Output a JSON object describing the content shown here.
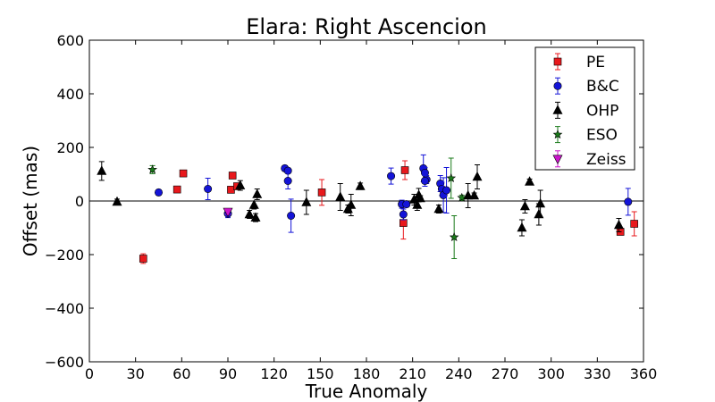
{
  "chart_data": {
    "type": "scatter",
    "title": "Elara: Right Ascencion",
    "xlabel": "True Anomaly",
    "ylabel": "Offset (mas)",
    "xlim": [
      0,
      360
    ],
    "ylim": [
      -600,
      600
    ],
    "xticks": [
      0,
      30,
      60,
      90,
      120,
      150,
      180,
      210,
      240,
      270,
      300,
      330,
      360
    ],
    "yticks": [
      -600,
      -400,
      -200,
      0,
      200,
      400,
      600
    ],
    "xtick_labels": [
      "0",
      "30",
      "60",
      "90",
      "120",
      "150",
      "180",
      "210",
      "240",
      "270",
      "300",
      "330",
      "360"
    ],
    "ytick_labels": [
      "−600",
      "−400",
      "−200",
      "0",
      "200",
      "400",
      "600"
    ],
    "zero_line": true,
    "grid": false,
    "legend_position": "top-right",
    "series": [
      {
        "name": "PE",
        "marker": "square",
        "color": "#e8181c",
        "points": [
          {
            "x": 35,
            "y": -215,
            "err": 18
          },
          {
            "x": 57,
            "y": 43,
            "err": 8
          },
          {
            "x": 61,
            "y": 103,
            "err": 8
          },
          {
            "x": 92,
            "y": 42,
            "err": 12
          },
          {
            "x": 93,
            "y": 95,
            "err": 8
          },
          {
            "x": 96,
            "y": 55,
            "err": 8
          },
          {
            "x": 151,
            "y": 32,
            "err": 48
          },
          {
            "x": 204,
            "y": -82,
            "err": 60
          },
          {
            "x": 205,
            "y": 115,
            "err": 35
          },
          {
            "x": 345,
            "y": -115,
            "err": 12
          },
          {
            "x": 354,
            "y": -85,
            "err": 45
          }
        ]
      },
      {
        "name": "B&C",
        "marker": "circle",
        "color": "#1414d8",
        "points": [
          {
            "x": 45,
            "y": 32,
            "err": 10
          },
          {
            "x": 77,
            "y": 45,
            "err": 40
          },
          {
            "x": 90,
            "y": -47,
            "err": 15
          },
          {
            "x": 127,
            "y": 122,
            "err": 10
          },
          {
            "x": 129,
            "y": 113,
            "err": 10
          },
          {
            "x": 129,
            "y": 75,
            "err": 30
          },
          {
            "x": 131,
            "y": -55,
            "err": 62
          },
          {
            "x": 196,
            "y": 93,
            "err": 30
          },
          {
            "x": 203,
            "y": -12,
            "err": 15
          },
          {
            "x": 204,
            "y": -50,
            "err": 20
          },
          {
            "x": 206,
            "y": -12,
            "err": 10
          },
          {
            "x": 217,
            "y": 122,
            "err": 50
          },
          {
            "x": 218,
            "y": 105,
            "err": 20
          },
          {
            "x": 219,
            "y": 80,
            "err": 15
          },
          {
            "x": 218,
            "y": 75,
            "err": 20
          },
          {
            "x": 228,
            "y": 65,
            "err": 30
          },
          {
            "x": 229,
            "y": 45,
            "err": 25
          },
          {
            "x": 230,
            "y": 22,
            "err": 65
          },
          {
            "x": 232,
            "y": 40,
            "err": 85
          },
          {
            "x": 350,
            "y": -3,
            "err": 50
          }
        ]
      },
      {
        "name": "OHP",
        "marker": "triangle-up",
        "color": "#000000",
        "points": [
          {
            "x": 8,
            "y": 112,
            "err": 35
          },
          {
            "x": 18,
            "y": -3,
            "err": 10
          },
          {
            "x": 104,
            "y": -50,
            "err": 15
          },
          {
            "x": 98,
            "y": 58,
            "err": 18
          },
          {
            "x": 107,
            "y": -15,
            "err": 15
          },
          {
            "x": 108,
            "y": -62,
            "err": 15
          },
          {
            "x": 109,
            "y": 25,
            "err": 20
          },
          {
            "x": 141,
            "y": -5,
            "err": 45
          },
          {
            "x": 163,
            "y": 15,
            "err": 50
          },
          {
            "x": 168,
            "y": -30,
            "err": 15
          },
          {
            "x": 170,
            "y": -15,
            "err": 40
          },
          {
            "x": 176,
            "y": 55,
            "err": 12
          },
          {
            "x": 211,
            "y": 5,
            "err": 20
          },
          {
            "x": 213,
            "y": -15,
            "err": 20
          },
          {
            "x": 214,
            "y": 22,
            "err": 25
          },
          {
            "x": 215,
            "y": 10,
            "err": 10
          },
          {
            "x": 227,
            "y": -30,
            "err": 15
          },
          {
            "x": 246,
            "y": 20,
            "err": 45
          },
          {
            "x": 250,
            "y": 20,
            "err": 10
          },
          {
            "x": 252,
            "y": 90,
            "err": 45
          },
          {
            "x": 281,
            "y": -100,
            "err": 30
          },
          {
            "x": 283,
            "y": -20,
            "err": 25
          },
          {
            "x": 286,
            "y": 72,
            "err": 10
          },
          {
            "x": 292,
            "y": -50,
            "err": 40
          },
          {
            "x": 293,
            "y": -10,
            "err": 50
          },
          {
            "x": 344,
            "y": -90,
            "err": 25
          }
        ]
      },
      {
        "name": "ESO",
        "marker": "star",
        "color": "#1a7a1a",
        "points": [
          {
            "x": 41,
            "y": 117,
            "err": 15
          },
          {
            "x": 235,
            "y": 85,
            "err": 75
          },
          {
            "x": 237,
            "y": -135,
            "err": 80
          },
          {
            "x": 242,
            "y": 12,
            "err": 10
          }
        ]
      },
      {
        "name": "Zeiss",
        "marker": "triangle-down",
        "color": "#cc14cc",
        "points": [
          {
            "x": 90,
            "y": -40,
            "err": 10
          }
        ]
      }
    ]
  }
}
